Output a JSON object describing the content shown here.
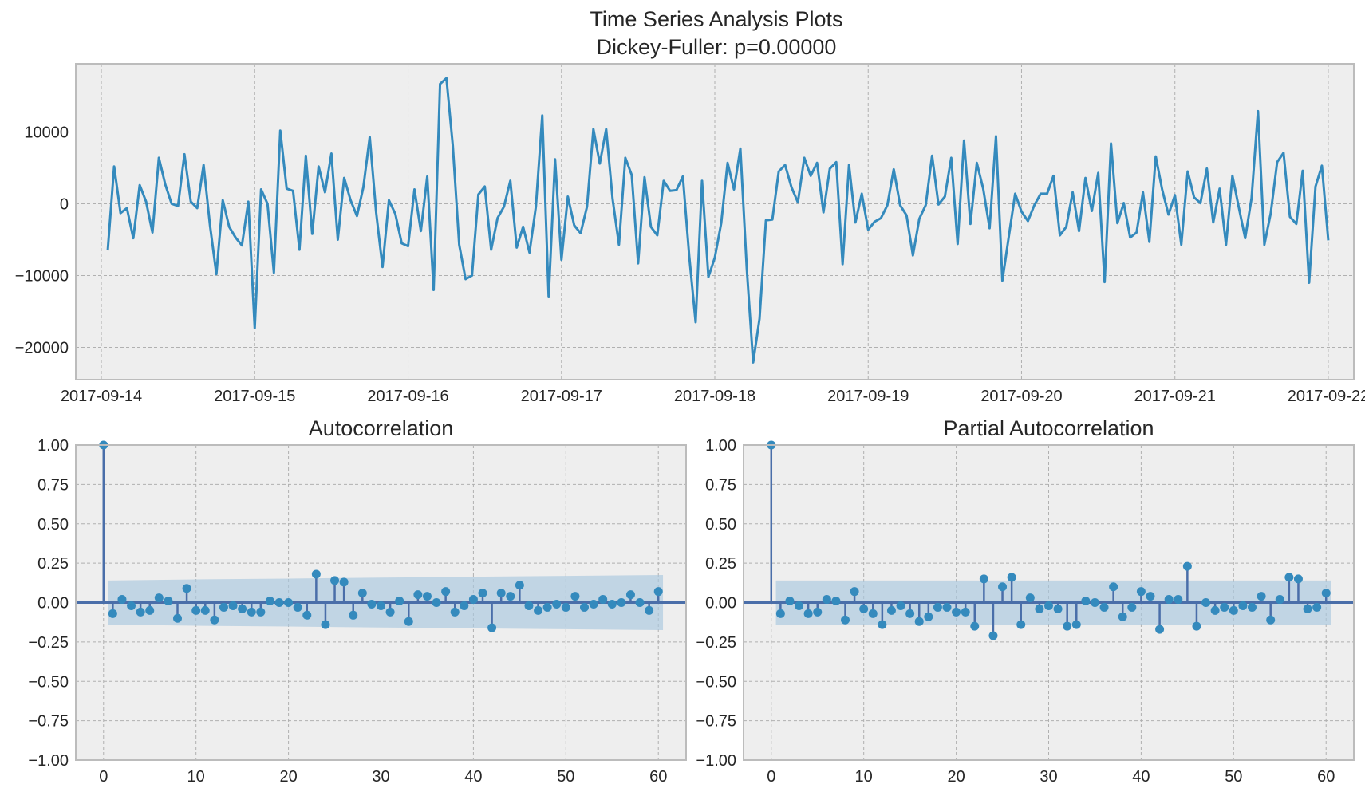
{
  "figure": {
    "suptitle_line1": "Time Series Analysis Plots",
    "suptitle_line2": "Dickey-Fuller: p=0.00000"
  },
  "colors": {
    "line": "#348abd",
    "stem": "#4a6ea9",
    "marker": "#348abd",
    "band": "#a9c8de",
    "axes_bg": "#eeeeee",
    "grid": "#b0b0b0",
    "spine": "#bcbcbc",
    "text": "#262626"
  },
  "chart_data": [
    {
      "type": "line",
      "title": "",
      "xlabel": "",
      "ylabel": "",
      "x_start": "2017-09-14T01:00",
      "x_step_hours": 1,
      "xlim": [
        "2017-09-13T20:00",
        "2017-09-22T04:00"
      ],
      "xticks": [
        "2017-09-14",
        "2017-09-15",
        "2017-09-16",
        "2017-09-17",
        "2017-09-18",
        "2017-09-19",
        "2017-09-20",
        "2017-09-21",
        "2017-09-22"
      ],
      "ylim": [
        -24500,
        19500
      ],
      "yticks": [
        10000,
        0,
        -10000,
        -20000
      ],
      "ytick_labels": [
        "10000",
        "0",
        "−10000",
        "−20000"
      ],
      "grid": true,
      "values": [
        -6500,
        5200,
        -1300,
        -600,
        -4800,
        2600,
        300,
        -4000,
        6400,
        2700,
        0,
        -300,
        6900,
        300,
        -600,
        5400,
        -3000,
        -9800,
        500,
        -3200,
        -4700,
        -5800,
        300,
        -17300,
        2000,
        0,
        -9600,
        10200,
        2100,
        1800,
        -6400,
        6700,
        -4200,
        5200,
        1600,
        7000,
        -5000,
        3600,
        500,
        -1700,
        2300,
        9300,
        -1200,
        -8800,
        500,
        -1400,
        -5500,
        -5900,
        2000,
        -3800,
        3800,
        -12000,
        16700,
        17500,
        8100,
        -5700,
        -10500,
        -10000,
        1300,
        2400,
        -6400,
        -2000,
        -400,
        3200,
        -6100,
        -3200,
        -6800,
        -400,
        12300,
        -13000,
        6200,
        -7800,
        1000,
        -3000,
        -4100,
        -400,
        10400,
        5600,
        10400,
        700,
        -5700,
        6400,
        4000,
        -8300,
        3700,
        -3200,
        -4400,
        3200,
        1800,
        1900,
        3800,
        -7300,
        -16500,
        3200,
        -10200,
        -7500,
        -2700,
        5700,
        2000,
        7700,
        -9000,
        -22100,
        -16000,
        -2300,
        -2200,
        4500,
        5400,
        2300,
        200,
        6400,
        3900,
        5700,
        -1200,
        4900,
        5800,
        -8400,
        5400,
        -2600,
        1400,
        -3600,
        -2500,
        -2000,
        -200,
        4800,
        -200,
        -1600,
        -7200,
        -2100,
        -200,
        6700,
        -100,
        1000,
        6400,
        -5600,
        8800,
        -2800,
        5700,
        2100,
        -3400,
        9400,
        -10700,
        -4600,
        1400,
        -1100,
        -2400,
        -200,
        1400,
        1400,
        3900,
        -4400,
        -3200,
        1600,
        -3800,
        3600,
        -1000,
        4300,
        -10900,
        8400,
        -2700,
        100,
        -4700,
        -4000,
        1600,
        -5300,
        6600,
        2000,
        -1500,
        1200,
        -5700,
        4500,
        900,
        100,
        4900,
        -2600,
        2100,
        -5700,
        3900,
        -500,
        -4800,
        800,
        12900,
        -5700,
        -1300,
        5800,
        7100,
        -1800,
        -2800,
        4600,
        -11000,
        2400,
        5300,
        -5100
      ]
    },
    {
      "type": "stem",
      "title": "Autocorrelation",
      "xlabel": "",
      "ylabel": "",
      "xlim": [
        -3,
        63
      ],
      "ylim": [
        -1,
        1
      ],
      "xticks": [
        0,
        10,
        20,
        30,
        40,
        50,
        60
      ],
      "yticks": [
        1.0,
        0.75,
        0.5,
        0.25,
        0.0,
        -0.25,
        -0.5,
        -0.75,
        -1.0
      ],
      "ytick_labels": [
        "1.00",
        "0.75",
        "0.50",
        "0.25",
        "0.00",
        "−0.25",
        "−0.50",
        "−0.75",
        "−1.00"
      ],
      "grid": true,
      "lags": [
        0,
        1,
        2,
        3,
        4,
        5,
        6,
        7,
        8,
        9,
        10,
        11,
        12,
        13,
        14,
        15,
        16,
        17,
        18,
        19,
        20,
        21,
        22,
        23,
        24,
        25,
        26,
        27,
        28,
        29,
        30,
        31,
        32,
        33,
        34,
        35,
        36,
        37,
        38,
        39,
        40,
        41,
        42,
        43,
        44,
        45,
        46,
        47,
        48,
        49,
        50,
        51,
        52,
        53,
        54,
        55,
        56,
        57,
        58,
        59,
        60
      ],
      "values": [
        1.0,
        -0.07,
        0.02,
        -0.02,
        -0.06,
        -0.05,
        0.03,
        0.01,
        -0.1,
        0.09,
        -0.05,
        -0.05,
        -0.11,
        -0.03,
        -0.02,
        -0.04,
        -0.06,
        -0.06,
        0.01,
        0.0,
        0.0,
        -0.03,
        -0.08,
        0.18,
        -0.14,
        0.14,
        0.13,
        -0.08,
        0.06,
        -0.01,
        -0.02,
        -0.06,
        0.01,
        -0.12,
        0.05,
        0.04,
        0.0,
        0.07,
        -0.06,
        -0.02,
        0.02,
        0.06,
        -0.16,
        0.06,
        0.04,
        0.11,
        -0.02,
        -0.05,
        -0.03,
        -0.01,
        -0.03,
        0.04,
        -0.03,
        -0.01,
        0.02,
        -0.01,
        0.0,
        0.05,
        0.0,
        -0.05,
        0.07
      ],
      "confidence_band": {
        "lags": [
          0.5,
          10,
          20,
          30,
          40,
          50,
          60.5
        ],
        "upper": [
          0.14,
          0.147,
          0.152,
          0.158,
          0.164,
          0.169,
          0.175
        ],
        "lower": [
          -0.14,
          -0.147,
          -0.152,
          -0.158,
          -0.164,
          -0.169,
          -0.175
        ]
      }
    },
    {
      "type": "stem",
      "title": "Partial Autocorrelation",
      "xlabel": "",
      "ylabel": "",
      "xlim": [
        -3,
        63
      ],
      "ylim": [
        -1,
        1
      ],
      "xticks": [
        0,
        10,
        20,
        30,
        40,
        50,
        60
      ],
      "yticks": [
        1.0,
        0.75,
        0.5,
        0.25,
        0.0,
        -0.25,
        -0.5,
        -0.75,
        -1.0
      ],
      "ytick_labels": [
        "1.00",
        "0.75",
        "0.50",
        "0.25",
        "0.00",
        "−0.25",
        "−0.50",
        "−0.75",
        "−1.00"
      ],
      "grid": true,
      "lags": [
        0,
        1,
        2,
        3,
        4,
        5,
        6,
        7,
        8,
        9,
        10,
        11,
        12,
        13,
        14,
        15,
        16,
        17,
        18,
        19,
        20,
        21,
        22,
        23,
        24,
        25,
        26,
        27,
        28,
        29,
        30,
        31,
        32,
        33,
        34,
        35,
        36,
        37,
        38,
        39,
        40,
        41,
        42,
        43,
        44,
        45,
        46,
        47,
        48,
        49,
        50,
        51,
        52,
        53,
        54,
        55,
        56,
        57,
        58,
        59,
        60
      ],
      "values": [
        1.0,
        -0.07,
        0.01,
        -0.02,
        -0.07,
        -0.06,
        0.02,
        0.01,
        -0.11,
        0.07,
        -0.04,
        -0.07,
        -0.14,
        -0.05,
        -0.02,
        -0.07,
        -0.12,
        -0.09,
        -0.03,
        -0.03,
        -0.06,
        -0.06,
        -0.15,
        0.15,
        -0.21,
        0.1,
        0.16,
        -0.14,
        0.03,
        -0.04,
        -0.02,
        -0.04,
        -0.15,
        -0.14,
        0.01,
        0.0,
        -0.03,
        0.1,
        -0.09,
        -0.03,
        0.07,
        0.04,
        -0.17,
        0.02,
        0.02,
        0.23,
        -0.15,
        0.0,
        -0.05,
        -0.03,
        -0.05,
        -0.02,
        -0.03,
        0.04,
        -0.11,
        0.02,
        0.16,
        0.15,
        -0.04,
        -0.03,
        0.06
      ],
      "confidence_band": {
        "lags": [
          0.5,
          60.5
        ],
        "upper": [
          0.14,
          0.14
        ],
        "lower": [
          -0.14,
          -0.14
        ]
      }
    }
  ]
}
